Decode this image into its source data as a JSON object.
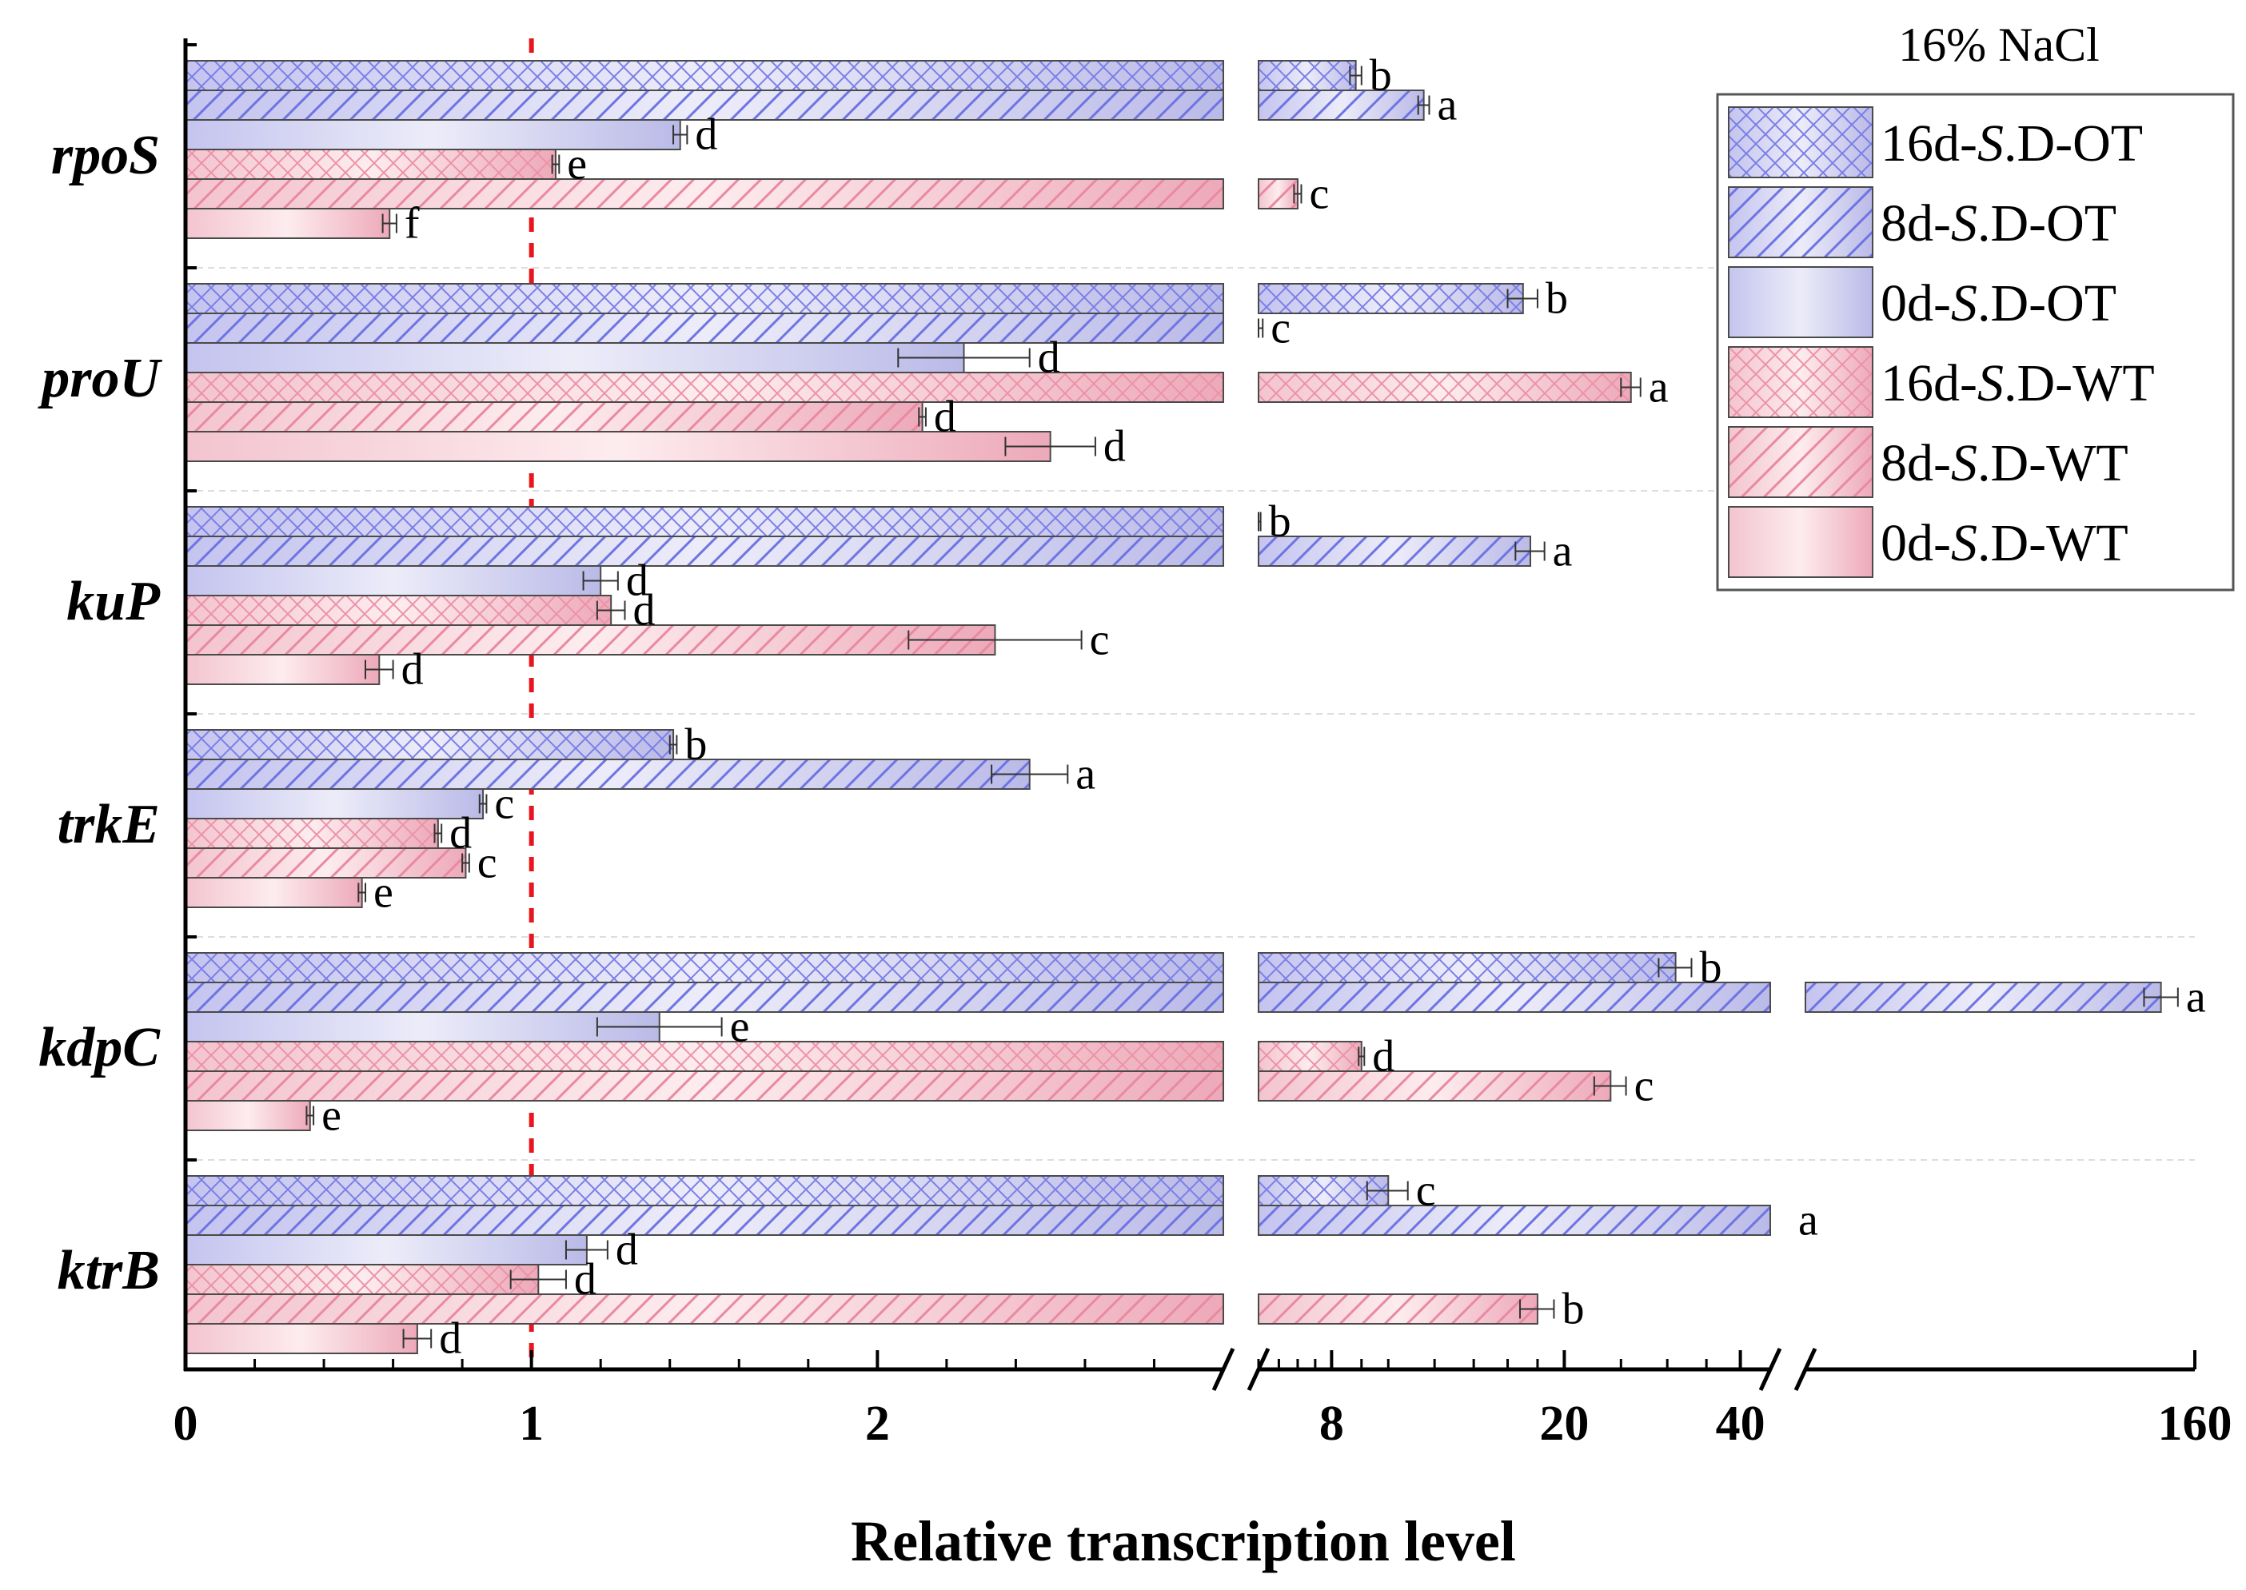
{
  "chart_data": {
    "type": "bar",
    "orientation": "horizontal",
    "xlabel": "Relative transcription level",
    "x_scale": "broken axis: linear 0-3 | log-like 6-45 | 45-160",
    "x_tick_labels": [
      "0",
      "1",
      "2",
      "8",
      "20",
      "40",
      "160"
    ],
    "reference_line": {
      "value": 1,
      "style": "dashed",
      "color": "#e8161c"
    },
    "legend": {
      "title": "16% NaCl",
      "position": "top-right",
      "items": [
        {
          "label": "16d-S.D-OT",
          "prefix": "16d-",
          "italic": "S",
          "suffix": ".D-OT"
        },
        {
          "label": "8d-S.D-OT",
          "prefix": "8d-",
          "italic": "S",
          "suffix": ".D-OT"
        },
        {
          "label": "0d-S.D-OT",
          "prefix": "0d-",
          "italic": "S",
          "suffix": ".D-OT"
        },
        {
          "label": "16d-S.D-WT",
          "prefix": "16d-",
          "italic": "S",
          "suffix": ".D-WT"
        },
        {
          "label": "8d-S.D-WT",
          "prefix": "8d-",
          "italic": "S",
          "suffix": ".D-WT"
        },
        {
          "label": "0d-S.D-WT",
          "prefix": "0d-",
          "italic": "S",
          "suffix": ".D-WT"
        }
      ]
    },
    "series_order": [
      "16d-S.D-OT",
      "8d-S.D-OT",
      "0d-S.D-OT",
      "16d-S.D-WT",
      "8d-S.D-WT",
      "0d-S.D-WT"
    ],
    "genes": [
      {
        "name": "rpoS",
        "values": [
          8.8,
          11.5,
          1.43,
          1.07,
          7.0,
          0.59
        ],
        "errors": [
          0.2,
          0.25,
          0.02,
          0.01,
          0.1,
          0.02
        ],
        "letters": [
          "b",
          "a",
          "d",
          "e",
          "c",
          "f"
        ]
      },
      {
        "name": "proU",
        "values": [
          17.0,
          6.0,
          2.25,
          26.0,
          2.13,
          2.5
        ],
        "errors": [
          1.0,
          0.1,
          0.19,
          1.0,
          0.01,
          0.13
        ],
        "letters": [
          "b",
          "c",
          "d",
          "a",
          "d",
          "d"
        ]
      },
      {
        "name": "kuP",
        "values": [
          6.0,
          17.5,
          1.2,
          1.23,
          2.34,
          0.56
        ],
        "errors": [
          0.05,
          1.0,
          0.05,
          0.04,
          0.25,
          0.04
        ],
        "letters": [
          "b",
          "a",
          "d",
          "d",
          "c",
          "d"
        ]
      },
      {
        "name": "trkE",
        "values": [
          1.41,
          2.44,
          0.86,
          0.73,
          0.81,
          0.51
        ],
        "errors": [
          0.01,
          0.11,
          0.01,
          0.01,
          0.01,
          0.01
        ],
        "letters": [
          "b",
          "a",
          "c",
          "d",
          "c",
          "e"
        ]
      },
      {
        "name": "kdpC",
        "values": [
          31.0,
          150.0,
          1.37,
          9.0,
          24.0,
          0.36
        ],
        "errors": [
          2.0,
          5.0,
          0.18,
          0.1,
          1.5,
          0.01
        ],
        "letters": [
          "b",
          "a",
          "e",
          "d",
          "c",
          "e"
        ]
      },
      {
        "name": "ktrB",
        "values": [
          10.0,
          45.0,
          1.16,
          1.02,
          18.0,
          0.67
        ],
        "errors": [
          0.8,
          0.0,
          0.06,
          0.08,
          1.2,
          0.04
        ],
        "letters": [
          "c",
          "a",
          "d",
          "d",
          "b",
          "d"
        ]
      }
    ]
  }
}
